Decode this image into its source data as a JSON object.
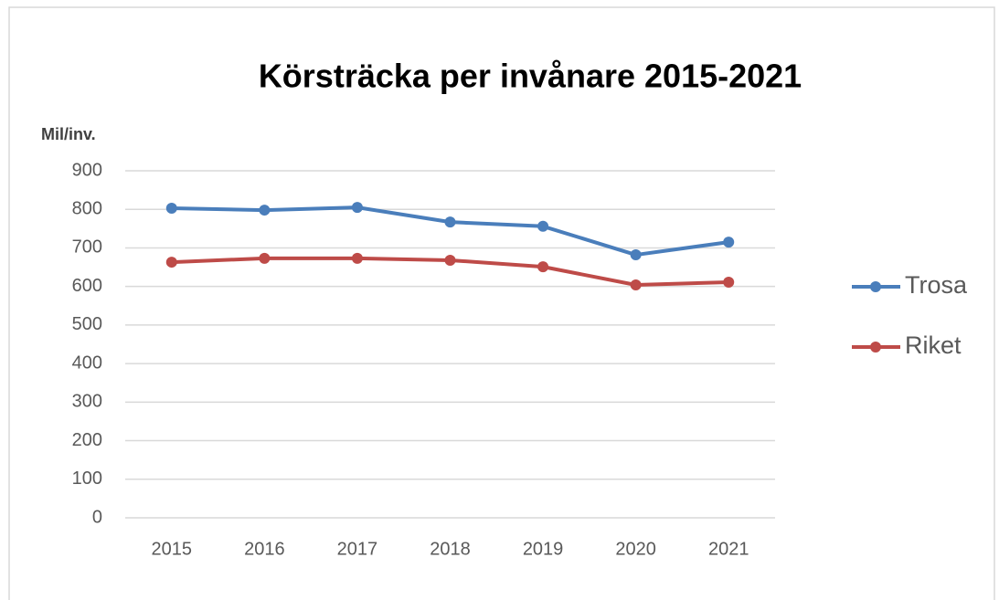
{
  "chart_data": {
    "type": "line",
    "title": "Körsträcka per invånare 2015-2021",
    "y_label": "Mil/inv.",
    "categories": [
      "2015",
      "2016",
      "2017",
      "2018",
      "2019",
      "2020",
      "2021"
    ],
    "series": [
      {
        "name": "Trosa",
        "color": "#4a7ebb",
        "values": [
          803,
          798,
          805,
          767,
          756,
          682,
          715
        ]
      },
      {
        "name": "Riket",
        "color": "#be4b48",
        "values": [
          663,
          673,
          673,
          668,
          651,
          604,
          611
        ]
      }
    ],
    "ylim": [
      0,
      900
    ],
    "yticks": [
      0,
      100,
      200,
      300,
      400,
      500,
      600,
      700,
      800,
      900
    ],
    "grid": true,
    "legend": "right"
  }
}
